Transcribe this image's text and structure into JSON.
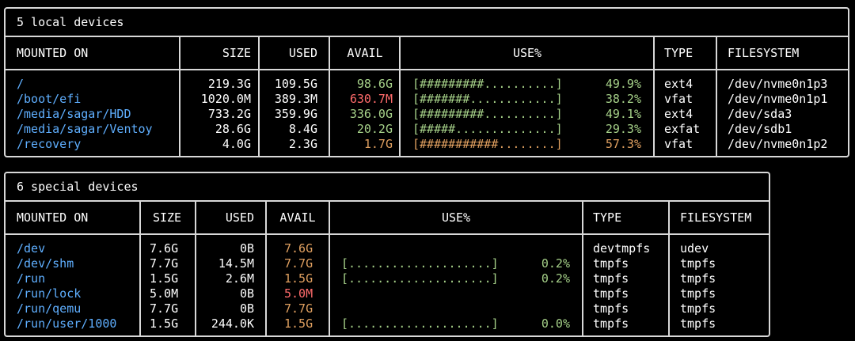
{
  "local": {
    "title": "5 local devices",
    "headers": {
      "mounted_on": "MOUNTED ON",
      "size": "SIZE",
      "used": "USED",
      "avail": "AVAIL",
      "use_pct": "USE%",
      "type": "TYPE",
      "filesystem": "FILESYSTEM"
    },
    "rows": [
      {
        "mount": "/",
        "size": "219.3G",
        "used": "109.5G",
        "avail": "98.6G",
        "avail_color": "green",
        "bar": "[#########..........]",
        "bar_color": "green",
        "pct": "49.9%",
        "type": "ext4",
        "fs": "/dev/nvme0n1p3"
      },
      {
        "mount": "/boot/efi",
        "size": "1020.0M",
        "used": "389.3M",
        "avail": "630.7M",
        "avail_color": "red",
        "bar": "[#######............]",
        "bar_color": "green",
        "pct": "38.2%",
        "type": "vfat",
        "fs": "/dev/nvme0n1p1"
      },
      {
        "mount": "/media/sagar/HDD",
        "size": "733.2G",
        "used": "359.9G",
        "avail": "336.0G",
        "avail_color": "green",
        "bar": "[#########..........]",
        "bar_color": "green",
        "pct": "49.1%",
        "type": "ext4",
        "fs": "/dev/sda3"
      },
      {
        "mount": "/media/sagar/Ventoy",
        "size": "28.6G",
        "used": "8.4G",
        "avail": "20.2G",
        "avail_color": "green",
        "bar": "[#####..............]",
        "bar_color": "green",
        "pct": "29.3%",
        "type": "exfat",
        "fs": "/dev/sdb1"
      },
      {
        "mount": "/recovery",
        "size": "4.0G",
        "used": "2.3G",
        "avail": "1.7G",
        "avail_color": "orange",
        "bar": "[###########........]",
        "bar_color": "orange",
        "pct": "57.3%",
        "type": "vfat",
        "fs": "/dev/nvme0n1p2"
      }
    ]
  },
  "special": {
    "title": "6 special devices",
    "headers": {
      "mounted_on": "MOUNTED ON",
      "size": "SIZE",
      "used": "USED",
      "avail": "AVAIL",
      "use_pct": "USE%",
      "type": "TYPE",
      "filesystem": "FILESYSTEM"
    },
    "rows": [
      {
        "mount": "/dev",
        "size": "7.6G",
        "used": "0B",
        "avail": "7.6G",
        "avail_color": "orange",
        "bar": "",
        "bar_color": "green",
        "pct": "",
        "type": "devtmpfs",
        "fs": "udev"
      },
      {
        "mount": "/dev/shm",
        "size": "7.7G",
        "used": "14.5M",
        "avail": "7.7G",
        "avail_color": "orange",
        "bar": "[....................]",
        "bar_color": "green",
        "pct": "0.2%",
        "type": "tmpfs",
        "fs": "tmpfs"
      },
      {
        "mount": "/run",
        "size": "1.5G",
        "used": "2.6M",
        "avail": "1.5G",
        "avail_color": "orange",
        "bar": "[....................]",
        "bar_color": "green",
        "pct": "0.2%",
        "type": "tmpfs",
        "fs": "tmpfs"
      },
      {
        "mount": "/run/lock",
        "size": "5.0M",
        "used": "0B",
        "avail": "5.0M",
        "avail_color": "red",
        "bar": "",
        "bar_color": "green",
        "pct": "",
        "type": "tmpfs",
        "fs": "tmpfs"
      },
      {
        "mount": "/run/qemu",
        "size": "7.7G",
        "used": "0B",
        "avail": "7.7G",
        "avail_color": "orange",
        "bar": "",
        "bar_color": "green",
        "pct": "",
        "type": "tmpfs",
        "fs": "tmpfs"
      },
      {
        "mount": "/run/user/1000",
        "size": "1.5G",
        "used": "244.0K",
        "avail": "1.5G",
        "avail_color": "orange",
        "bar": "[....................]",
        "bar_color": "green",
        "pct": "0.0%",
        "type": "tmpfs",
        "fs": "tmpfs"
      }
    ]
  }
}
